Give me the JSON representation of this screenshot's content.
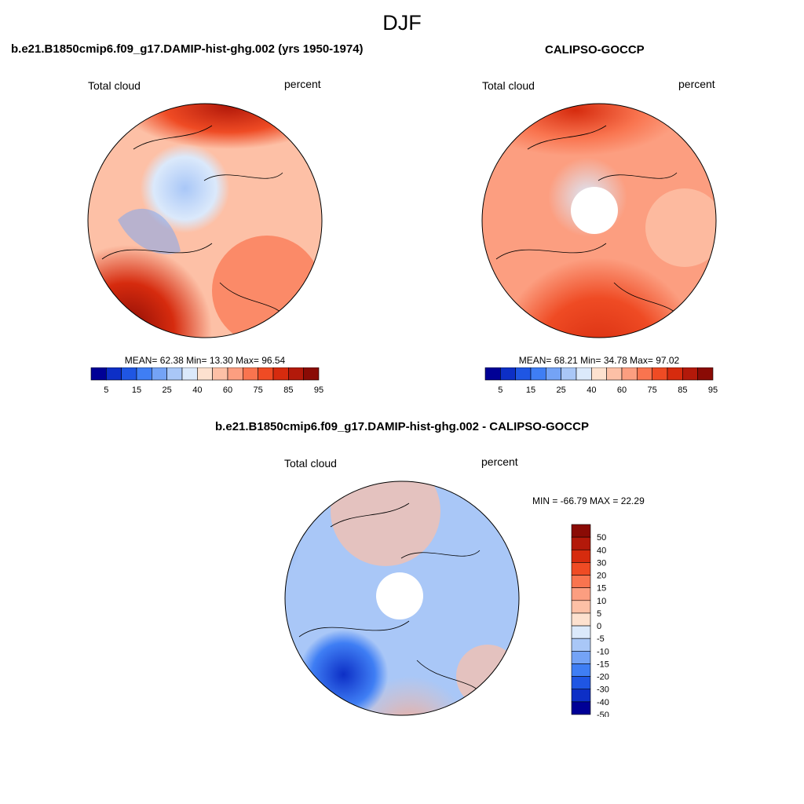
{
  "figure": {
    "season": "DJF"
  },
  "panels": [
    {
      "title": "b.e21.B1850cmip6.f09_g17.DAMIP-hist-ghg.002 (yrs 1950-1974)",
      "left_label": "Total cloud",
      "right_label": "percent",
      "stats": "MEAN=  62.38  Min=  13.30  Max=  96.54"
    },
    {
      "title": "CALIPSO-GOCCP",
      "left_label": "Total cloud",
      "right_label": "percent",
      "stats": "MEAN=  68.21  Min=  34.78  Max=  97.02"
    },
    {
      "title": "b.e21.B1850cmip6.f09_g17.DAMIP-hist-ghg.002 - CALIPSO-GOCCP",
      "left_label": "Total cloud",
      "right_label": "percent",
      "stats": "MIN = -66.79 MAX =  22.29"
    }
  ],
  "colorbars": {
    "main": {
      "colors": [
        "#000096",
        "#0d2fc6",
        "#1f56e3",
        "#3f7ef4",
        "#74a3f6",
        "#a9c7f7",
        "#dbe9fb",
        "#fde1cf",
        "#fdc0a6",
        "#fc9e80",
        "#f9744f",
        "#ef4b24",
        "#d62b0e",
        "#b3190a",
        "#8a0b05"
      ],
      "tick_labels": [
        "5",
        "15",
        "25",
        "40",
        "60",
        "75",
        "85",
        "95"
      ]
    },
    "diff": {
      "colors": [
        "#8a0b05",
        "#b3190a",
        "#d62b0e",
        "#ef4b24",
        "#f9744f",
        "#fc9e80",
        "#fdc0a6",
        "#fde1cf",
        "#dbe9fb",
        "#a9c7f7",
        "#74a3f6",
        "#3f7ef4",
        "#1f56e3",
        "#0d2fc6",
        "#000096"
      ],
      "tick_labels": [
        "50",
        "40",
        "30",
        "20",
        "15",
        "10",
        "5",
        "0",
        "-5",
        "-10",
        "-15",
        "-20",
        "-30",
        "-40",
        "-50"
      ]
    }
  }
}
